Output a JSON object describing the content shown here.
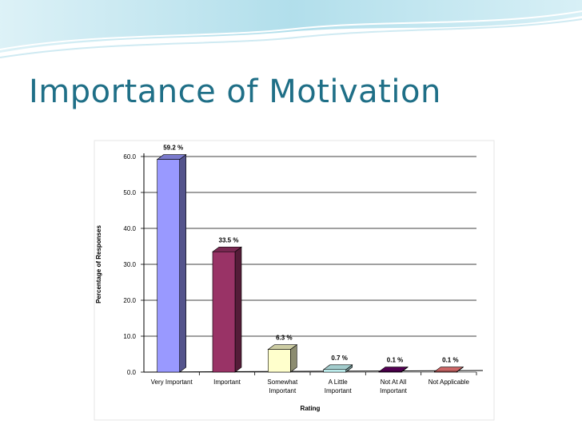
{
  "slide": {
    "title": "Importance of Motivation"
  },
  "colors": {
    "title": "#1f6f87",
    "header_wave": "#bfe3ee"
  },
  "chart_data": {
    "type": "bar",
    "title": "",
    "xlabel": "Rating",
    "ylabel": "Percentage of Responses",
    "ylim": [
      0,
      60
    ],
    "yticks": [
      "0.0",
      "10.0",
      "20.0",
      "30.0",
      "40.0",
      "50.0",
      "60.0"
    ],
    "grid": true,
    "legend": "none",
    "three_d": true,
    "categories": [
      [
        "Very Important"
      ],
      [
        "Important"
      ],
      [
        "Somewhat",
        "Important"
      ],
      [
        "A Little",
        "Important"
      ],
      [
        "Not At All",
        "Important"
      ],
      [
        "Not Applicable"
      ]
    ],
    "values": [
      59.2,
      33.5,
      6.3,
      0.7,
      0.1,
      0.1
    ],
    "data_labels": [
      "59.2 %",
      "33.5 %",
      "6.3 %",
      "0.7 %",
      "0.1 %",
      "0.1 %"
    ],
    "bar_colors": [
      "#9999ff",
      "#993366",
      "#ffffcc",
      "#ccffff",
      "#660066",
      "#ff8080"
    ]
  }
}
